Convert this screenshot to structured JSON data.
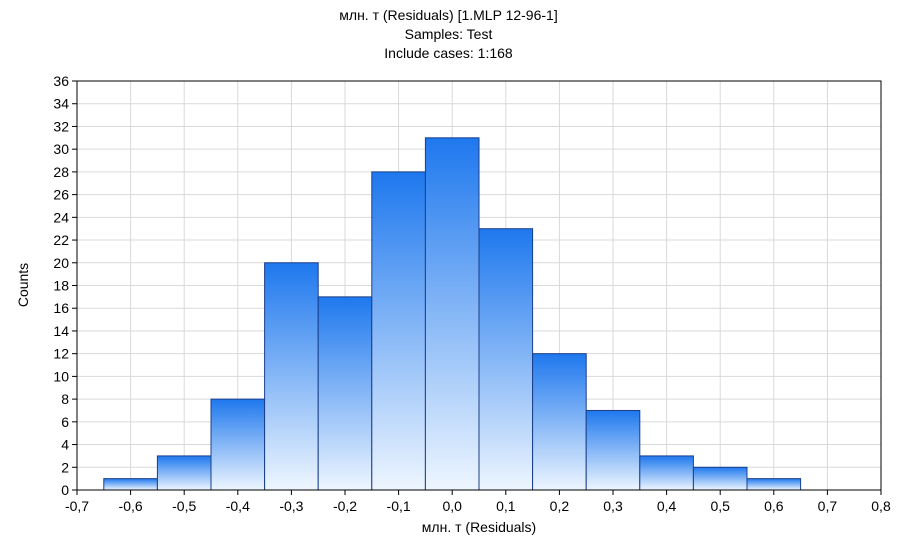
{
  "chart_data": {
    "type": "bar",
    "title": "млн. т (Residuals) [1.MLP 12-96-1]",
    "subtitle_lines": [
      "Samples: Test",
      "Include cases: 1:168"
    ],
    "xlabel": "млн. т (Residuals)",
    "ylabel": "Counts",
    "xlim": [
      -0.7,
      0.8
    ],
    "ylim": [
      0,
      36
    ],
    "grid": true,
    "x_ticks": [
      "-0,7",
      "-0,6",
      "-0,5",
      "-0,4",
      "-0,3",
      "-0,2",
      "-0,1",
      "0,0",
      "0,1",
      "0,2",
      "0,3",
      "0,4",
      "0,5",
      "0,6",
      "0,7",
      "0,8"
    ],
    "y_ticks": [
      "0",
      "2",
      "4",
      "6",
      "8",
      "10",
      "12",
      "14",
      "16",
      "18",
      "20",
      "22",
      "24",
      "26",
      "28",
      "30",
      "32",
      "34",
      "36"
    ],
    "bins": [
      {
        "from": -0.65,
        "to": -0.55,
        "count": 1
      },
      {
        "from": -0.55,
        "to": -0.45,
        "count": 3
      },
      {
        "from": -0.45,
        "to": -0.35,
        "count": 8
      },
      {
        "from": -0.35,
        "to": -0.25,
        "count": 20
      },
      {
        "from": -0.25,
        "to": -0.15,
        "count": 17
      },
      {
        "from": -0.15,
        "to": -0.05,
        "count": 28
      },
      {
        "from": -0.05,
        "to": 0.05,
        "count": 31
      },
      {
        "from": 0.05,
        "to": 0.15,
        "count": 23
      },
      {
        "from": 0.15,
        "to": 0.25,
        "count": 12
      },
      {
        "from": 0.25,
        "to": 0.35,
        "count": 7
      },
      {
        "from": 0.35,
        "to": 0.45,
        "count": 3
      },
      {
        "from": 0.45,
        "to": 0.55,
        "count": 2
      },
      {
        "from": 0.55,
        "to": 0.65,
        "count": 1
      }
    ],
    "colors": {
      "bar_top": "#1e78ee",
      "bar_bottom": "#eef6ff",
      "bar_stroke": "#1a3f8a",
      "grid": "#d9d9d9"
    }
  }
}
